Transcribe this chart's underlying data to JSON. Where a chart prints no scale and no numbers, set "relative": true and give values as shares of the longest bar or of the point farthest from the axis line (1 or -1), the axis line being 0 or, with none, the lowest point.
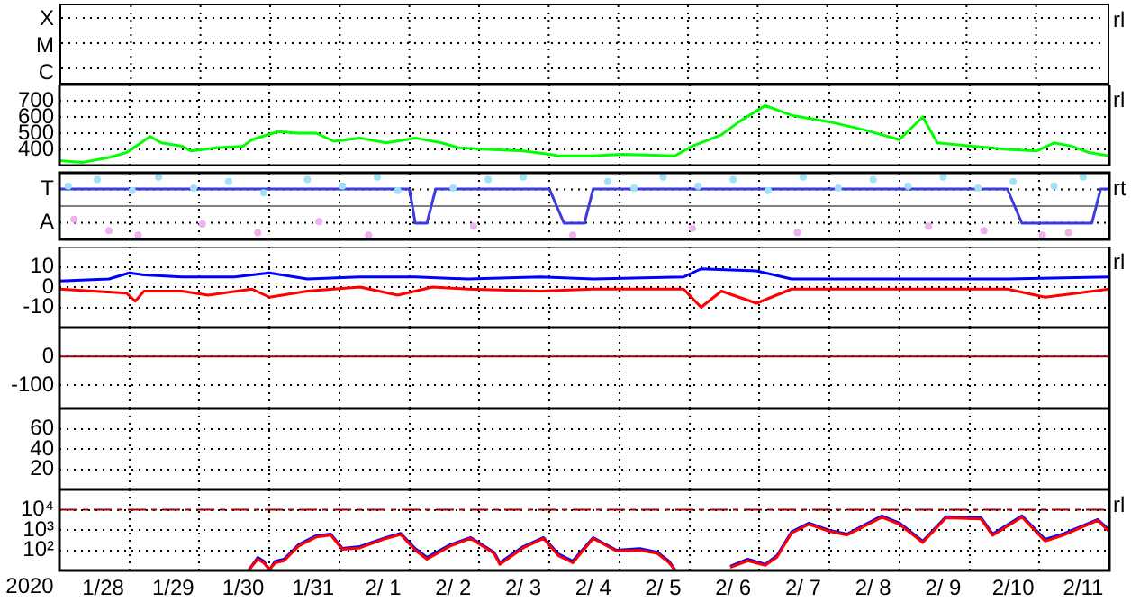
{
  "chart_data": [
    {
      "type": "other",
      "annotations": [
        "X",
        "M",
        "C",
        "rl"
      ]
    },
    {
      "type": "line",
      "grid": true,
      "tick_labels": "y",
      "xlim": [
        "2020-01-27T09:00",
        "2020-02-11T09:00"
      ],
      "ylim": [
        300,
        800
      ],
      "xticks": [
        {
          "value": "2020-01-28T09:00",
          "label": null
        },
        {
          "value": "2020-01-29T09:00",
          "label": null
        },
        {
          "value": "2020-01-30T09:00",
          "label": null
        },
        {
          "value": "2020-01-31T09:00",
          "label": null
        },
        {
          "value": "2020-02-01T09:00",
          "label": null
        },
        {
          "value": "2020-02-02T09:00",
          "label": null
        },
        {
          "value": "2020-02-03T09:00",
          "label": null
        },
        {
          "value": "2020-02-04T09:00",
          "label": null
        },
        {
          "value": "2020-02-05T09:00",
          "label": null
        },
        {
          "value": "2020-02-06T09:00",
          "label": null
        },
        {
          "value": "2020-02-07T09:00",
          "label": null
        },
        {
          "value": "2020-02-08T09:00",
          "label": null
        },
        {
          "value": "2020-02-09T09:00",
          "label": null
        },
        {
          "value": "2020-02-10T09:00",
          "label": null
        }
      ],
      "yticks": [
        400,
        500,
        600,
        700
      ],
      "series": [
        {
          "color": "#00ff00",
          "x": [
            "2020-01-27T09:00",
            "2020-01-27T17:00",
            "2020-01-28T02:00",
            "2020-01-28T08:00",
            "2020-01-28T13:00",
            "2020-01-28T16:00",
            "2020-01-28T20:00",
            "2020-01-29T03:00",
            "2020-01-29T06:00",
            "2020-01-29T15:00",
            "2020-01-30T00:00",
            "2020-01-30T03:00",
            "2020-01-30T12:00",
            "2020-01-30T19:00",
            "2020-01-31T01:00",
            "2020-01-31T07:00",
            "2020-01-31T16:00",
            "2020-02-01T01:00",
            "2020-02-01T11:00",
            "2020-02-01T20:00",
            "2020-02-02T02:00",
            "2020-02-02T12:00",
            "2020-02-03T00:00",
            "2020-02-03T09:00",
            "2020-02-03T12:00",
            "2020-02-04T00:00",
            "2020-02-04T10:00",
            "2020-02-05T04:00",
            "2020-02-05T10:00",
            "2020-02-05T20:00",
            "2020-02-06T02:00",
            "2020-02-06T11:00",
            "2020-02-06T20:00",
            "2020-02-07T09:00",
            "2020-02-07T21:00",
            "2020-02-08T09:00",
            "2020-02-08T17:00",
            "2020-02-08T22:00",
            "2020-02-09T10:00",
            "2020-02-09T22:00",
            "2020-02-10T08:00",
            "2020-02-10T14:00",
            "2020-02-10T20:00",
            "2020-02-11T02:00",
            "2020-02-11T09:00"
          ],
          "values": [
            330,
            320,
            350,
            380,
            440,
            480,
            440,
            420,
            390,
            410,
            420,
            460,
            510,
            500,
            500,
            450,
            470,
            440,
            470,
            440,
            410,
            400,
            390,
            370,
            360,
            360,
            370,
            360,
            420,
            490,
            570,
            670,
            610,
            570,
            520,
            460,
            600,
            440,
            420,
            400,
            390,
            440,
            420,
            380,
            360
          ]
        }
      ],
      "annotations": [
        "rl"
      ]
    },
    {
      "type": "line",
      "relative": true,
      "grid": true,
      "tick_labels": "y",
      "xlim": [
        "2020-01-27T09:00",
        "2020-02-11T09:00"
      ],
      "xticks": [
        {
          "value": "2020-01-28T09:00",
          "label": null
        },
        {
          "value": "2020-01-29T09:00",
          "label": null
        },
        {
          "value": "2020-01-30T09:00",
          "label": null
        },
        {
          "value": "2020-01-31T09:00",
          "label": null
        },
        {
          "value": "2020-02-01T09:00",
          "label": null
        },
        {
          "value": "2020-02-02T09:00",
          "label": null
        },
        {
          "value": "2020-02-03T09:00",
          "label": null
        },
        {
          "value": "2020-02-04T09:00",
          "label": null
        },
        {
          "value": "2020-02-05T09:00",
          "label": null
        },
        {
          "value": "2020-02-06T09:00",
          "label": null
        },
        {
          "value": "2020-02-07T09:00",
          "label": null
        },
        {
          "value": "2020-02-08T09:00",
          "label": null
        },
        {
          "value": "2020-02-09T09:00",
          "label": null
        },
        {
          "value": "2020-02-10T09:00",
          "label": null
        }
      ],
      "ref_lines": [
        {
          "axis": "y",
          "value": 0,
          "color": "#808080"
        }
      ],
      "series": [
        {
          "type": "scatter",
          "color": "#a0e0f8",
          "x": [
            "2020-01-27T12:00",
            "2020-01-27T22:00",
            "2020-01-28T10:00",
            "2020-01-28T19:00",
            "2020-01-29T07:00",
            "2020-01-29T19:00",
            "2020-01-30T07:00",
            "2020-01-30T22:00",
            "2020-01-31T10:00",
            "2020-01-31T22:00",
            "2020-02-01T05:00",
            "2020-02-02T00:00",
            "2020-02-02T12:00",
            "2020-02-03T00:00",
            "2020-02-04T05:00",
            "2020-02-04T14:00",
            "2020-02-05T00:00",
            "2020-02-05T12:00",
            "2020-02-06T00:00",
            "2020-02-06T12:00",
            "2020-02-07T00:00",
            "2020-02-07T12:00",
            "2020-02-08T00:00",
            "2020-02-08T12:00",
            "2020-02-09T00:00",
            "2020-02-09T12:00",
            "2020-02-10T00:00",
            "2020-02-10T14:00",
            "2020-02-11T00:00"
          ],
          "values": [
            0.69,
            0.92,
            0.54,
            1,
            0.62,
            0.85,
            0.46,
            0.92,
            0.69,
            1,
            0.54,
            0.62,
            0.92,
            1,
            0.85,
            0.62,
            1,
            0.69,
            0.92,
            0.54,
            1,
            0.62,
            0.92,
            0.69,
            1,
            0.62,
            0.85,
            0.69,
            1
          ]
        },
        {
          "type": "scatter",
          "color": "#f0b0f0",
          "x": [
            "2020-01-27T14:00",
            "2020-01-28T02:00",
            "2020-01-28T12:00",
            "2020-01-29T10:00",
            "2020-01-30T05:00",
            "2020-01-31T02:00",
            "2020-01-31T19:00",
            "2020-02-02T07:00",
            "2020-02-03T17:00",
            "2020-02-05T10:00",
            "2020-02-06T22:00",
            "2020-02-08T19:00",
            "2020-02-09T14:00",
            "2020-02-10T10:00",
            "2020-02-10T19:00"
          ],
          "values": [
            -0.46,
            -0.85,
            -1,
            -0.62,
            -0.92,
            -0.54,
            -1,
            -0.69,
            -1,
            -0.77,
            -0.92,
            -0.69,
            -0.85,
            -1,
            -0.92
          ]
        },
        {
          "color": "#3c3cdc",
          "x": [
            "2020-01-27T09:00",
            "2020-02-01T09:00",
            "2020-02-01T11:00",
            "2020-02-01T15:00",
            "2020-02-01T18:00",
            "2020-02-03T09:00",
            "2020-02-03T14:00",
            "2020-02-03T21:00",
            "2020-02-04T00:00",
            "2020-02-09T22:00",
            "2020-02-10T03:00",
            "2020-02-11T03:00",
            "2020-02-11T06:00",
            "2020-02-11T09:00"
          ],
          "values": [
            0.59,
            0.59,
            -0.59,
            -0.59,
            0.59,
            0.59,
            -0.59,
            -0.59,
            0.59,
            0.59,
            -0.59,
            -0.59,
            0.59,
            0.59
          ]
        }
      ],
      "annotations": [
        "T",
        "A",
        "rt"
      ]
    },
    {
      "type": "line",
      "grid": true,
      "tick_labels": "y",
      "xlim": [
        "2020-01-27T09:00",
        "2020-02-11T09:00"
      ],
      "ylim": [
        -20,
        20
      ],
      "xticks": [
        {
          "value": "2020-01-28T09:00",
          "label": null
        },
        {
          "value": "2020-01-29T09:00",
          "label": null
        },
        {
          "value": "2020-01-30T09:00",
          "label": null
        },
        {
          "value": "2020-01-31T09:00",
          "label": null
        },
        {
          "value": "2020-02-01T09:00",
          "label": null
        },
        {
          "value": "2020-02-02T09:00",
          "label": null
        },
        {
          "value": "2020-02-03T09:00",
          "label": null
        },
        {
          "value": "2020-02-04T09:00",
          "label": null
        },
        {
          "value": "2020-02-05T09:00",
          "label": null
        },
        {
          "value": "2020-02-06T09:00",
          "label": null
        },
        {
          "value": "2020-02-07T09:00",
          "label": null
        },
        {
          "value": "2020-02-08T09:00",
          "label": null
        },
        {
          "value": "2020-02-09T09:00",
          "label": null
        },
        {
          "value": "2020-02-10T09:00",
          "label": null
        }
      ],
      "yticks": [
        10,
        0,
        -10
      ],
      "series": [
        {
          "color": "#ff0000",
          "x": [
            "2020-01-27T09:00",
            "2020-01-28T08:00",
            "2020-01-28T11:00",
            "2020-01-28T14:00",
            "2020-01-29T03:00",
            "2020-01-29T12:00",
            "2020-01-30T03:00",
            "2020-01-30T09:00",
            "2020-01-30T22:00",
            "2020-01-31T16:00",
            "2020-02-01T05:00",
            "2020-02-01T17:00",
            "2020-02-02T05:00",
            "2020-02-03T06:00",
            "2020-02-04T00:00",
            "2020-02-05T07:00",
            "2020-02-05T13:00",
            "2020-02-05T20:00",
            "2020-02-06T08:00",
            "2020-02-06T20:00",
            "2020-02-07T21:00",
            "2020-02-09T22:00",
            "2020-02-10T11:00",
            "2020-02-11T09:00"
          ],
          "values": [
            -1,
            -3,
            -7,
            -2,
            -2,
            -4,
            -1,
            -5,
            -2,
            0,
            -4,
            0,
            -1,
            -2,
            -1,
            -1,
            -10,
            -2,
            -8,
            -1,
            -1,
            -1,
            -5,
            -1
          ]
        },
        {
          "color": "#0000ff",
          "x": [
            "2020-01-27T09:00",
            "2020-01-28T02:00",
            "2020-01-28T09:00",
            "2020-01-28T14:00",
            "2020-01-29T03:00",
            "2020-01-29T21:00",
            "2020-01-30T09:00",
            "2020-01-30T22:00",
            "2020-01-31T16:00",
            "2020-02-01T11:00",
            "2020-02-02T05:00",
            "2020-02-03T06:00",
            "2020-02-04T00:00",
            "2020-02-05T07:00",
            "2020-02-05T13:00",
            "2020-02-06T08:00",
            "2020-02-06T20:00",
            "2020-02-08T09:00",
            "2020-02-09T22:00",
            "2020-02-11T09:00"
          ],
          "values": [
            3,
            4,
            7,
            6,
            5,
            5,
            7,
            4,
            5,
            5,
            4,
            5,
            4,
            5,
            9,
            8,
            4,
            4,
            4,
            5
          ]
        }
      ],
      "annotations": [
        "rl"
      ]
    },
    {
      "type": "line",
      "grid": true,
      "tick_labels": "y",
      "xlim": [
        "2020-01-27T09:00",
        "2020-02-11T09:00"
      ],
      "ylim": [
        -180,
        100
      ],
      "xticks": [
        {
          "value": "2020-01-28T09:00",
          "label": null
        },
        {
          "value": "2020-01-29T09:00",
          "label": null
        },
        {
          "value": "2020-01-30T09:00",
          "label": null
        },
        {
          "value": "2020-01-31T09:00",
          "label": null
        },
        {
          "value": "2020-02-01T09:00",
          "label": null
        },
        {
          "value": "2020-02-02T09:00",
          "label": null
        },
        {
          "value": "2020-02-03T09:00",
          "label": null
        },
        {
          "value": "2020-02-04T09:00",
          "label": null
        },
        {
          "value": "2020-02-05T09:00",
          "label": null
        },
        {
          "value": "2020-02-06T09:00",
          "label": null
        },
        {
          "value": "2020-02-07T09:00",
          "label": null
        },
        {
          "value": "2020-02-08T09:00",
          "label": null
        },
        {
          "value": "2020-02-09T09:00",
          "label": null
        },
        {
          "value": "2020-02-10T09:00",
          "label": null
        }
      ],
      "yticks": [
        0,
        -100
      ],
      "ref_lines": [
        {
          "axis": "y",
          "value": 0,
          "color": "#a00000"
        }
      ]
    },
    {
      "type": "line",
      "grid": true,
      "tick_labels": "y",
      "xlim": [
        "2020-01-27T09:00",
        "2020-02-11T09:00"
      ],
      "ylim": [
        0,
        80
      ],
      "xticks": [
        {
          "value": "2020-01-28T09:00",
          "label": null
        },
        {
          "value": "2020-01-29T09:00",
          "label": null
        },
        {
          "value": "2020-01-30T09:00",
          "label": null
        },
        {
          "value": "2020-01-31T09:00",
          "label": null
        },
        {
          "value": "2020-02-01T09:00",
          "label": null
        },
        {
          "value": "2020-02-02T09:00",
          "label": null
        },
        {
          "value": "2020-02-03T09:00",
          "label": null
        },
        {
          "value": "2020-02-04T09:00",
          "label": null
        },
        {
          "value": "2020-02-05T09:00",
          "label": null
        },
        {
          "value": "2020-02-06T09:00",
          "label": null
        },
        {
          "value": "2020-02-07T09:00",
          "label": null
        },
        {
          "value": "2020-02-08T09:00",
          "label": null
        },
        {
          "value": "2020-02-09T09:00",
          "label": null
        },
        {
          "value": "2020-02-10T09:00",
          "label": null
        }
      ],
      "yticks": [
        60,
        40,
        20
      ]
    },
    {
      "type": "line",
      "log": true,
      "grid": true,
      "xlim": [
        "2020-01-27T09:00",
        "2020-02-11T09:00"
      ],
      "ylim": [
        10,
        100000
      ],
      "xlabel": "2020",
      "xticks": [
        {
          "value": "2020-01-28T00:00",
          "label": "1/28"
        },
        {
          "value": "2020-01-29T00:00",
          "label": "1/29"
        },
        {
          "value": "2020-01-30T00:00",
          "label": "1/30"
        },
        {
          "value": "2020-01-31T00:00",
          "label": "1/31"
        },
        {
          "value": "2020-02-01T00:00",
          "label": "2/ 1"
        },
        {
          "value": "2020-02-02T00:00",
          "label": "2/ 2"
        },
        {
          "value": "2020-02-03T00:00",
          "label": "2/ 3"
        },
        {
          "value": "2020-02-04T00:00",
          "label": "2/ 4"
        },
        {
          "value": "2020-02-05T00:00",
          "label": "2/ 5"
        },
        {
          "value": "2020-02-06T00:00",
          "label": "2/ 6"
        },
        {
          "value": "2020-02-07T00:00",
          "label": "2/ 7"
        },
        {
          "value": "2020-02-08T00:00",
          "label": "2/ 8"
        },
        {
          "value": "2020-02-09T00:00",
          "label": "2/ 9"
        },
        {
          "value": "2020-02-10T00:00",
          "label": "2/10"
        },
        {
          "value": "2020-02-11T00:00",
          "label": "2/11"
        },
        {
          "value": "2020-01-28T09:00",
          "label": null
        },
        {
          "value": "2020-01-29T09:00",
          "label": null
        },
        {
          "value": "2020-01-30T09:00",
          "label": null
        },
        {
          "value": "2020-01-31T09:00",
          "label": null
        },
        {
          "value": "2020-02-01T09:00",
          "label": null
        },
        {
          "value": "2020-02-02T09:00",
          "label": null
        },
        {
          "value": "2020-02-03T09:00",
          "label": null
        },
        {
          "value": "2020-02-04T09:00",
          "label": null
        },
        {
          "value": "2020-02-05T09:00",
          "label": null
        },
        {
          "value": "2020-02-06T09:00",
          "label": null
        },
        {
          "value": "2020-02-07T09:00",
          "label": null
        },
        {
          "value": "2020-02-08T09:00",
          "label": null
        },
        {
          "value": "2020-02-09T09:00",
          "label": null
        },
        {
          "value": "2020-02-10T09:00",
          "label": null
        }
      ],
      "yticks": [
        {
          "value": 10000,
          "label": "10⁴"
        },
        {
          "value": 1000,
          "label": "10³"
        },
        {
          "value": 100,
          "label": "10²"
        }
      ],
      "ref_lines": [
        {
          "axis": "y",
          "value": 10000,
          "color": "#a00000",
          "line_style": "dashed"
        }
      ],
      "series": [
        {
          "color": "#ff0000",
          "x": [
            "2020-01-30T02:00",
            "2020-01-30T05:00",
            "2020-01-30T07:00",
            "2020-01-30T09:00",
            "2020-01-30T11:00",
            "2020-01-30T14:00",
            "2020-01-30T19:00",
            "2020-01-31T01:00",
            "2020-01-31T06:00",
            "2020-01-31T10:00",
            "2020-01-31T16:00",
            "2020-02-01T01:00",
            "2020-02-01T06:00",
            "2020-02-01T11:00",
            "2020-02-01T15:00",
            "2020-02-01T23:00",
            "2020-02-02T06:00",
            "2020-02-02T14:00",
            "2020-02-02T16:00",
            "2020-02-03T00:00",
            "2020-02-03T07:00",
            "2020-02-03T12:00",
            "2020-02-03T17:00",
            "2020-02-04T00:00",
            "2020-02-04T08:00",
            "2020-02-04T16:00",
            "2020-02-04T22:00",
            "2020-02-05T02:00",
            "2020-02-05T04:00",
            "2020-02-05T12:00",
            "2020-02-05T23:00",
            "2020-02-06T05:00",
            "2020-02-06T11:00",
            "2020-02-06T15:00",
            "2020-02-06T20:00",
            "2020-02-07T02:00",
            "2020-02-07T09:00",
            "2020-02-07T15:00",
            "2020-02-08T03:00",
            "2020-02-08T09:00",
            "2020-02-08T17:00",
            "2020-02-09T01:00",
            "2020-02-09T13:00",
            "2020-02-09T17:00",
            "2020-02-10T03:00",
            "2020-02-10T11:00",
            "2020-02-10T17:00",
            "2020-02-11T05:00",
            "2020-02-11T09:00"
          ],
          "values": [
            11,
            36,
            24,
            11,
            24,
            30,
            160,
            450,
            560,
            110,
            130,
            380,
            600,
            100,
            36,
            160,
            380,
            70,
            20,
            130,
            380,
            55,
            24,
            380,
            90,
            100,
            70,
            24,
            11,
            null,
            14,
            30,
            18,
            45,
            700,
            1900,
            850,
            560,
            4200,
            1900,
            240,
            4000,
            3500,
            540,
            4300,
            280,
            540,
            3000,
            800
          ]
        },
        {
          "color": "#0000ff",
          "x": [
            "2020-01-30T02:00",
            "2020-01-30T05:00",
            "2020-01-30T07:00",
            "2020-01-30T09:00",
            "2020-01-30T11:00",
            "2020-01-30T14:00",
            "2020-01-30T19:00",
            "2020-01-31T01:00",
            "2020-01-31T06:00",
            "2020-01-31T10:00",
            "2020-01-31T16:00",
            "2020-02-01T01:00",
            "2020-02-01T06:00",
            "2020-02-01T11:00",
            "2020-02-01T15:00",
            "2020-02-01T23:00",
            "2020-02-02T06:00",
            "2020-02-02T14:00",
            "2020-02-02T16:00",
            "2020-02-03T00:00",
            "2020-02-03T07:00",
            "2020-02-03T12:00",
            "2020-02-03T17:00",
            "2020-02-04T00:00",
            "2020-02-04T08:00",
            "2020-02-04T16:00",
            "2020-02-04T22:00",
            "2020-02-05T02:00",
            "2020-02-05T04:00",
            "2020-02-05T12:00",
            "2020-02-05T23:00",
            "2020-02-06T05:00",
            "2020-02-06T11:00",
            "2020-02-06T15:00",
            "2020-02-06T20:00",
            "2020-02-07T02:00",
            "2020-02-07T09:00",
            "2020-02-07T15:00",
            "2020-02-08T03:00",
            "2020-02-08T09:00",
            "2020-02-08T17:00",
            "2020-02-09T01:00",
            "2020-02-09T13:00",
            "2020-02-09T17:00",
            "2020-02-10T03:00",
            "2020-02-10T11:00",
            "2020-02-10T17:00",
            "2020-02-11T05:00",
            "2020-02-11T09:00"
          ],
          "values": [
            11,
            44,
            29,
            11,
            29,
            36,
            186,
            520,
            630,
            122,
            150,
            420,
            680,
            120,
            44,
            186,
            420,
            80,
            24,
            150,
            420,
            66,
            29,
            420,
            100,
            120,
            80,
            29,
            11,
            null,
            16,
            36,
            20,
            54,
            800,
            2200,
            960,
            630,
            5000,
            2200,
            280,
            4500,
            4000,
            630,
            5000,
            340,
            630,
            3300,
            960
          ]
        }
      ],
      "annotations": [
        "rl"
      ]
    }
  ]
}
